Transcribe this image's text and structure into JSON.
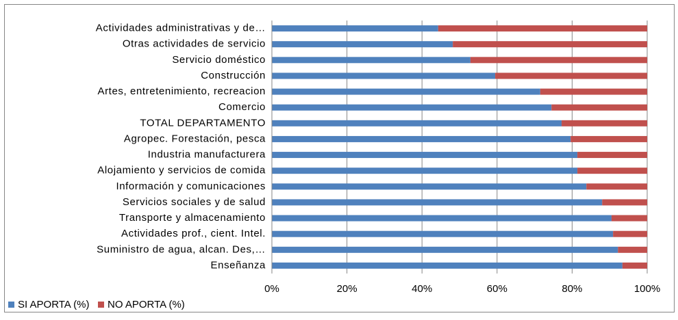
{
  "chart_data": {
    "type": "stacked_barh",
    "categories": [
      "Actividades administrativas y de…",
      "Otras actividades de servicio",
      "Servicio doméstico",
      "Construcción",
      "Artes, entretenimiento, recreacion",
      "Comercio",
      "TOTAL DEPARTAMENTO",
      "Agropec. Forestación, pesca",
      "Industria manufacturera",
      "Alojamiento y servicios de comida",
      "Información y comunicaciones",
      "Servicios sociales y de salud",
      "Transporte y almacenamiento",
      "Actividades prof., cient. Intel.",
      "Suministro de agua, alcan. Des,…",
      "Enseñanza"
    ],
    "series": [
      {
        "name": "SI APORTA (%)",
        "color": "#4f81bd",
        "values": [
          44.3,
          48.2,
          52.9,
          59.5,
          71.5,
          74.5,
          77.2,
          79.6,
          81.4,
          81.4,
          83.8,
          88,
          90.5,
          90.9,
          92.2,
          93.4
        ]
      },
      {
        "name": "NO APORTA (%)",
        "color": "#c0504d",
        "values": [
          55.7,
          51.8,
          47.1,
          40.5,
          28.5,
          25.5,
          22.8,
          20.4,
          18.6,
          18.6,
          16.2,
          12,
          9.5,
          9.1,
          7.8,
          6.6
        ]
      }
    ],
    "xlim": [
      0,
      100
    ],
    "xticks": [
      {
        "value": 0,
        "label": "0%"
      },
      {
        "value": 20,
        "label": "20%"
      },
      {
        "value": 40,
        "label": "40%"
      },
      {
        "value": 60,
        "label": "60%"
      },
      {
        "value": 80,
        "label": "80%"
      },
      {
        "value": 100,
        "label": "100%"
      }
    ],
    "grid": true
  }
}
